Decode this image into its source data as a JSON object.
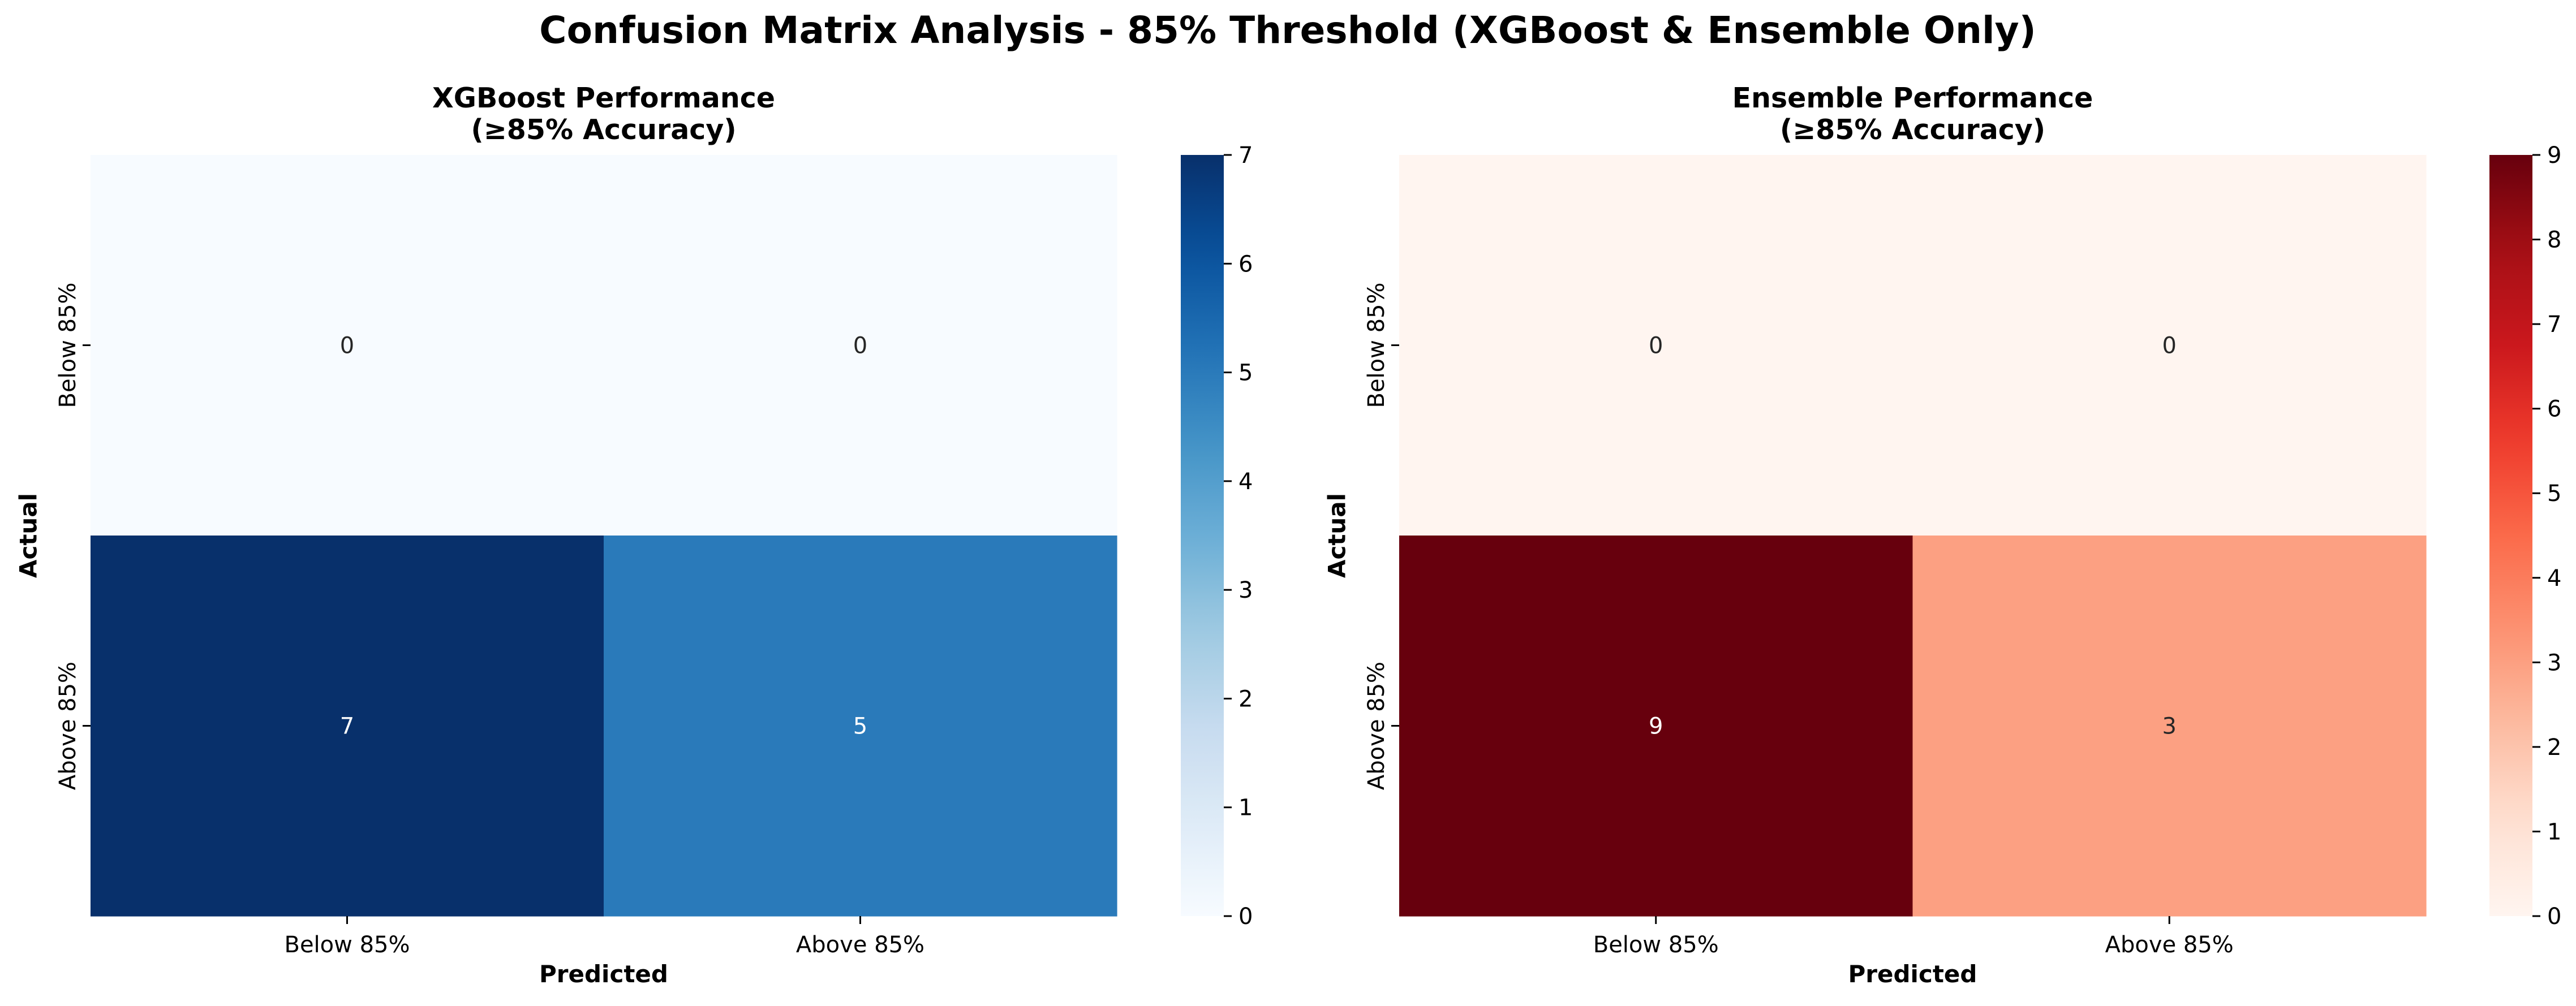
{
  "figure": {
    "suptitle": "Confusion Matrix Analysis - 85% Threshold (XGBoost & Ensemble Only)"
  },
  "chart_data": [
    {
      "type": "heatmap",
      "title_line1": "XGBoost Performance",
      "title_line2": "(≥85% Accuracy)",
      "xlabel": "Predicted",
      "ylabel": "Actual",
      "x_categories": [
        "Below 85%",
        "Above 85%"
      ],
      "y_categories": [
        "Below 85%",
        "Above 85%"
      ],
      "values": [
        [
          0,
          0
        ],
        [
          7,
          5
        ]
      ],
      "colormap": "Blues",
      "colorbar": {
        "min": 0,
        "max": 7,
        "ticks": [
          0,
          1,
          2,
          3,
          4,
          5,
          6,
          7
        ]
      },
      "colors": {
        "low": "#f7fbff",
        "high": "#08306b"
      }
    },
    {
      "type": "heatmap",
      "title_line1": "Ensemble Performance",
      "title_line2": "(≥85% Accuracy)",
      "xlabel": "Predicted",
      "ylabel": "Actual",
      "x_categories": [
        "Below 85%",
        "Above 85%"
      ],
      "y_categories": [
        "Below 85%",
        "Above 85%"
      ],
      "values": [
        [
          0,
          0
        ],
        [
          9,
          3
        ]
      ],
      "colormap": "Reds",
      "colorbar": {
        "min": 0,
        "max": 9,
        "ticks": [
          0,
          1,
          2,
          3,
          4,
          5,
          6,
          7,
          8,
          9
        ]
      },
      "colors": {
        "low": "#fff5f0",
        "high": "#67000d"
      }
    }
  ]
}
